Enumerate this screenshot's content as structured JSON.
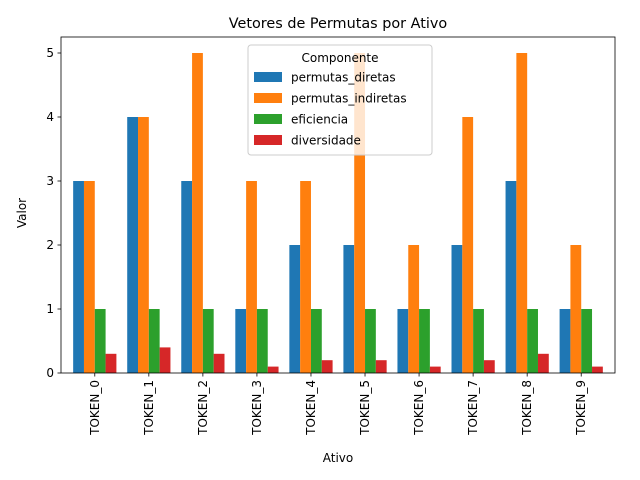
{
  "chart_data": {
    "type": "bar",
    "title": "Vetores de Permutas por Ativo",
    "xlabel": "Ativo",
    "ylabel": "Valor",
    "ylim": [
      0,
      5.25
    ],
    "yticks": [
      0,
      1,
      2,
      3,
      4,
      5
    ],
    "grid": false,
    "legend_title": "Componente",
    "legend_position": "top-center",
    "categories": [
      "TOKEN_0",
      "TOKEN_1",
      "TOKEN_2",
      "TOKEN_3",
      "TOKEN_4",
      "TOKEN_5",
      "TOKEN_6",
      "TOKEN_7",
      "TOKEN_8",
      "TOKEN_9"
    ],
    "series": [
      {
        "name": "permutas_diretas",
        "color": "#1f77b4",
        "values": [
          3,
          4,
          3,
          1,
          2,
          2,
          1,
          2,
          3,
          1
        ]
      },
      {
        "name": "permutas_indiretas",
        "color": "#ff7f0e",
        "values": [
          3,
          4,
          5,
          3,
          3,
          5,
          2,
          4,
          5,
          2
        ]
      },
      {
        "name": "eficiencia",
        "color": "#2ca02c",
        "values": [
          1,
          1,
          1,
          1,
          1,
          1,
          1,
          1,
          1,
          1
        ]
      },
      {
        "name": "diversidade",
        "color": "#d62728",
        "values": [
          0.3,
          0.4,
          0.3,
          0.1,
          0.2,
          0.2,
          0.1,
          0.2,
          0.3,
          0.1
        ]
      }
    ]
  }
}
